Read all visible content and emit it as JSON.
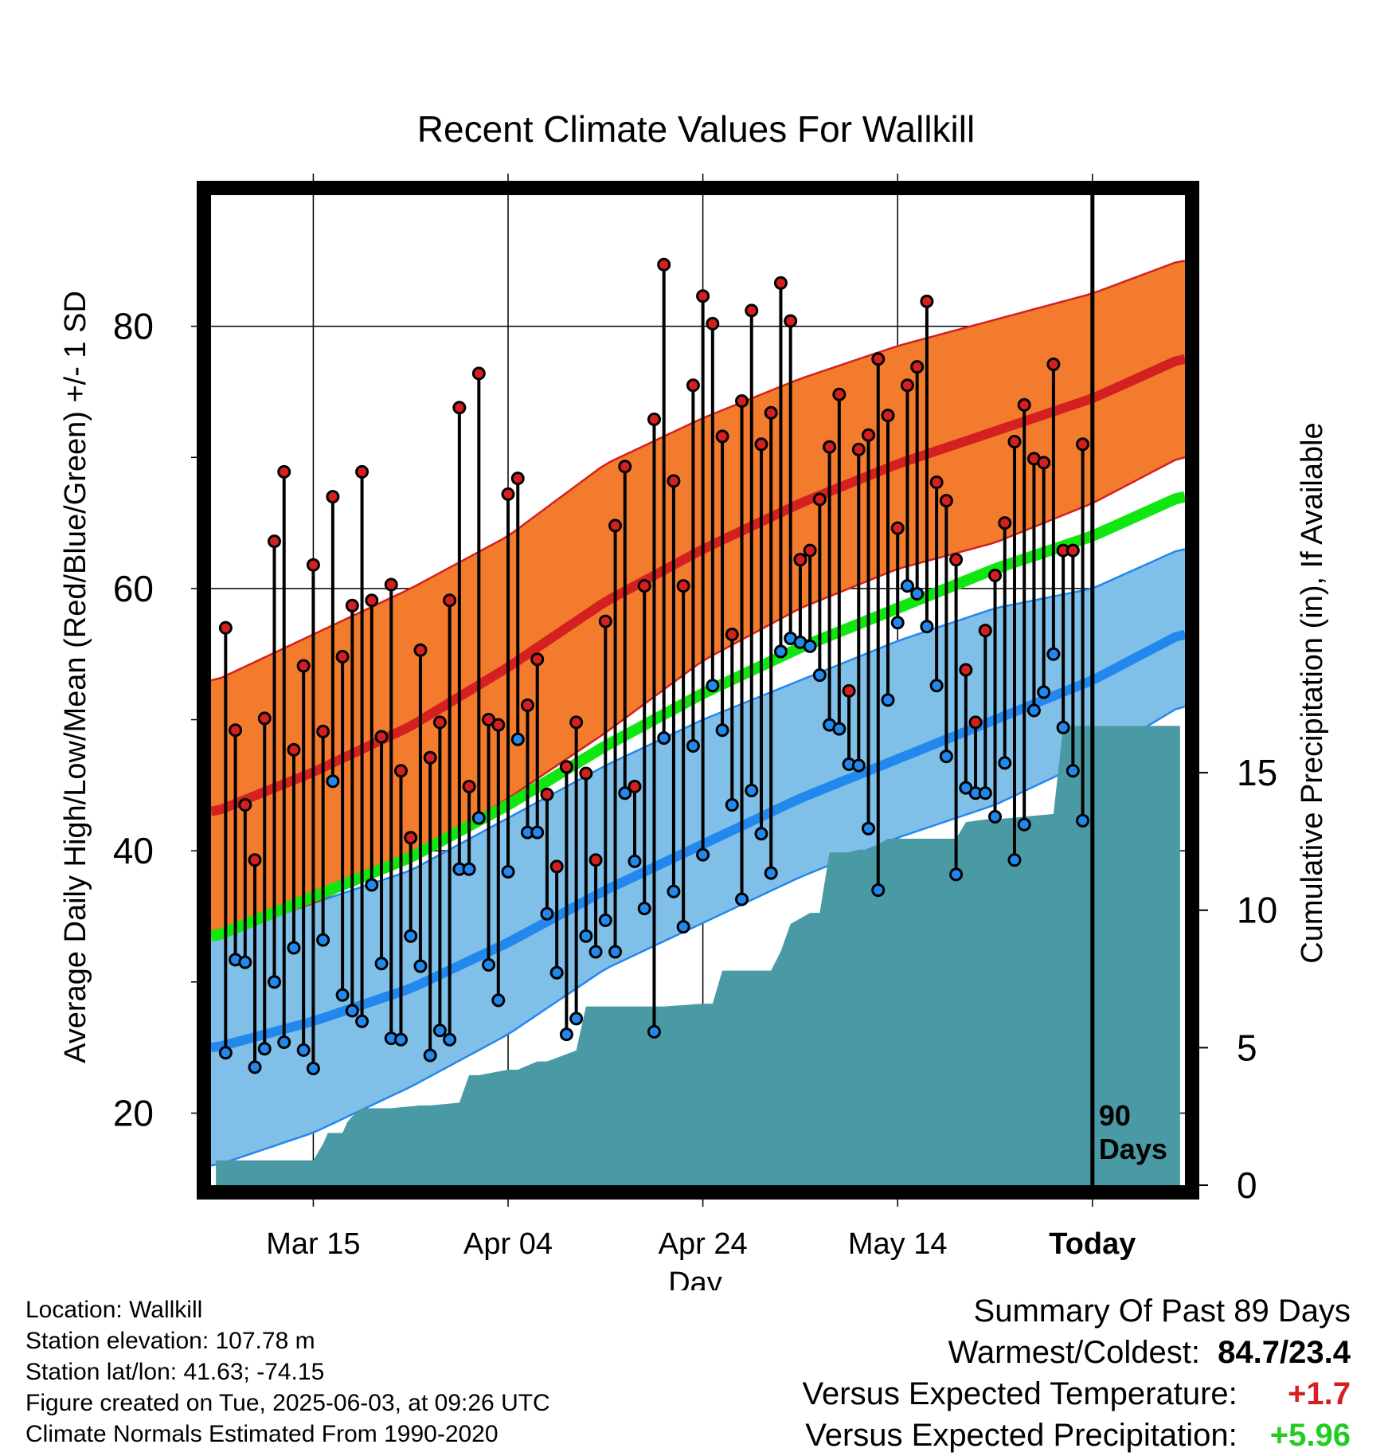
{
  "chart_data": {
    "type": "line",
    "title": "Recent Climate Values For Wallkill",
    "xlabel": "Day",
    "ylabel": "Average Daily High/Low/Mean (Red/Blue/Green) +/- 1 SD",
    "y2label": "Cumulative Precipitation (in), If Available",
    "x_tick_labels": [
      "Mar 15",
      "Apr 04",
      "Apr 24",
      "May 14",
      "Today"
    ],
    "x_tick_days": [
      10,
      30,
      50,
      70,
      90
    ],
    "x_range_days": [
      -0.5,
      99.5
    ],
    "ylim": [
      14.5,
      90
    ],
    "y_ticks": [
      20,
      40,
      60,
      80
    ],
    "y2lim": [
      0,
      36
    ],
    "y2_ticks": [
      0,
      5,
      10,
      15
    ],
    "today_marker": "90\nDays",
    "grid": true,
    "normals": {
      "days": [
        0,
        10,
        20,
        30,
        40,
        50,
        60,
        70,
        80,
        90,
        99
      ],
      "high_mean": [
        43,
        46,
        49.5,
        54,
        59,
        63,
        66.5,
        69.5,
        72,
        74.5,
        77.5
      ],
      "high_upper": [
        53,
        56.5,
        60,
        64,
        69.5,
        73,
        76,
        78.5,
        80.5,
        82.5,
        85
      ],
      "high_lower": [
        33.5,
        36,
        39.5,
        44,
        49,
        54.5,
        58.5,
        61.5,
        63.5,
        66.5,
        70
      ],
      "low_mean": [
        25,
        27,
        29.5,
        33,
        37,
        40.5,
        44,
        47,
        50,
        53,
        56.5
      ],
      "low_upper": [
        34,
        36,
        38.5,
        42.5,
        46.5,
        50,
        53,
        56,
        58.5,
        60,
        63
      ],
      "low_lower": [
        16,
        18.5,
        22,
        26,
        31,
        34.5,
        38,
        41,
        43.5,
        47,
        51
      ],
      "avg_mean": [
        33.5,
        36.5,
        39.5,
        43.5,
        48,
        52,
        55.5,
        58.5,
        61.5,
        64,
        67
      ]
    },
    "series": [
      {
        "name": "High",
        "color": "#d42020",
        "values": [
          57,
          49.2,
          43.5,
          39.3,
          50.1,
          63.6,
          68.9,
          47.7,
          54.1,
          61.8,
          49.1,
          67,
          54.8,
          58.7,
          68.9,
          59.1,
          48.7,
          60.3,
          46.1,
          41,
          55.3,
          47.1,
          49.8,
          59.1,
          73.8,
          44.9,
          76.4,
          50,
          49.6,
          67.2,
          68.4,
          51.1,
          54.6,
          44.3,
          38.8,
          46.4,
          49.8,
          45.9,
          39.3,
          57.5,
          64.8,
          69.3,
          44.9,
          60.2,
          72.9,
          84.7,
          68.2,
          60.2,
          75.5,
          82.3,
          80.2,
          71.6,
          56.5,
          74.3,
          81.2,
          71,
          73.4,
          83.3,
          80.4,
          62.2,
          62.9,
          66.8,
          70.8,
          74.8,
          52.2,
          70.6,
          71.7,
          77.5,
          73.2,
          64.6,
          75.5,
          76.9,
          81.9,
          68.1,
          66.7,
          62.2,
          53.8,
          49.8,
          56.8,
          61,
          65,
          71.2,
          74,
          69.9,
          69.6,
          77.1,
          62.9,
          62.9,
          71
        ]
      },
      {
        "name": "Low",
        "color": "#2288ee",
        "values": [
          24.6,
          31.7,
          31.5,
          23.5,
          24.9,
          30,
          25.4,
          32.6,
          24.8,
          23.4,
          33.2,
          45.3,
          29,
          27.8,
          27,
          37.4,
          31.4,
          25.7,
          25.6,
          33.5,
          31.2,
          24.4,
          26.3,
          25.6,
          38.6,
          38.6,
          42.5,
          31.3,
          28.6,
          38.4,
          48.5,
          41.4,
          41.4,
          35.2,
          30.7,
          26,
          27.2,
          33.5,
          32.3,
          34.7,
          32.3,
          44.4,
          39.2,
          35.6,
          26.2,
          48.6,
          36.9,
          34.2,
          48,
          39.7,
          52.6,
          49.2,
          43.5,
          36.3,
          44.6,
          41.3,
          38.3,
          55.2,
          56.2,
          55.9,
          55.6,
          53.4,
          49.6,
          49.3,
          46.6,
          46.5,
          41.7,
          37,
          51.5,
          57.4,
          60.2,
          59.6,
          57.1,
          52.6,
          47.2,
          38.2,
          44.8,
          44.4,
          44.4,
          42.6,
          46.7,
          39.3,
          42,
          50.7,
          52.1,
          55,
          49.4,
          46.1,
          42.3
        ]
      },
      {
        "name": "Precipitation",
        "color": "#4a9aa5",
        "precip_days": [
          0,
          9,
          10,
          11,
          11.5,
          13,
          13.5,
          14,
          15,
          16,
          17,
          18,
          21,
          22,
          25,
          26,
          27,
          30,
          31,
          33,
          34,
          37,
          38,
          40,
          42,
          46,
          50,
          51,
          52,
          57,
          58,
          59,
          61,
          62,
          63,
          64,
          65,
          66,
          67,
          69,
          70,
          72,
          73,
          76,
          77,
          79,
          80,
          86,
          87,
          99
        ],
        "precip_values": [
          0.9,
          0.9,
          0.9,
          1.5,
          1.9,
          1.9,
          2.3,
          2.5,
          2.8,
          2.8,
          2.8,
          2.8,
          2.9,
          2.9,
          3,
          4,
          4,
          4.2,
          4.2,
          4.5,
          4.5,
          4.9,
          6.5,
          6.5,
          6.5,
          6.5,
          6.6,
          6.6,
          7.8,
          7.8,
          8.5,
          9.5,
          9.9,
          9.9,
          12.1,
          12.1,
          12.1,
          12.2,
          12.2,
          12.6,
          12.6,
          12.6,
          12.6,
          12.6,
          13.2,
          13.3,
          13.3,
          13.5,
          16.7,
          16.7
        ]
      }
    ],
    "colors": {
      "high_band": "#f27b2e",
      "high_band_edge": "#d42020",
      "high_mean": "#d42020",
      "low_band": "#80bfe8",
      "low_band_edge": "#2288ee",
      "low_mean": "#2288ee",
      "avg_mean": "#11e611",
      "precip": "#4a9aa5"
    }
  },
  "footer": {
    "location": "Location: Wallkill",
    "elevation": "Station elevation: 107.78 m",
    "latlon": "Station lat/lon: 41.63; -74.15",
    "created": "Figure created on Tue, 2025-06-03, at 09:26 UTC",
    "normals": "Climate Normals Estimated From 1990-2020"
  },
  "summary": {
    "title": "Summary Of Past 89 Days",
    "warm_cold_label": "Warmest/Coldest:",
    "warm_cold_value": "84.7/23.4",
    "temp_label": "Versus Expected Temperature:",
    "temp_value": "+1.7",
    "precip_label": "Versus Expected Precipitation:",
    "precip_value": "+5.96"
  }
}
